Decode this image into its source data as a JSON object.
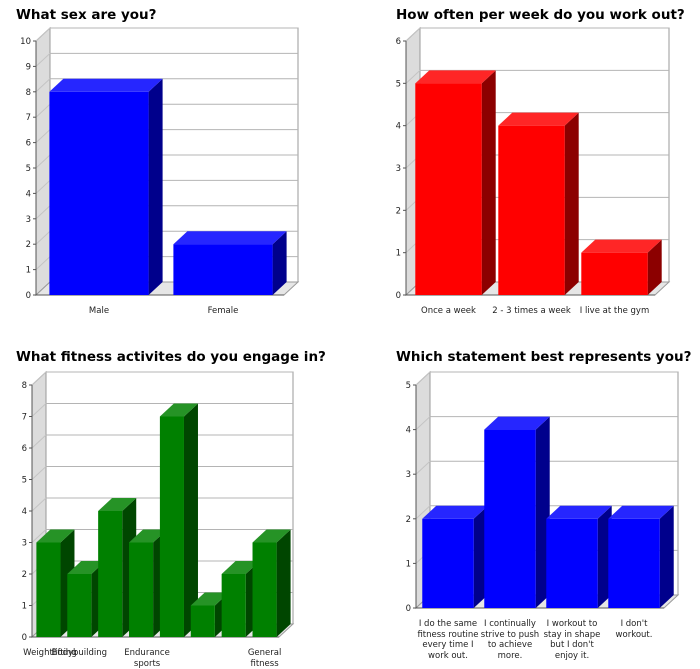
{
  "chart_data": [
    {
      "type": "bar",
      "title": "What sex are you?",
      "categories": [
        "Male",
        "Female"
      ],
      "values": [
        8,
        2
      ],
      "ylim": [
        0,
        10
      ],
      "yticks": [
        0,
        1,
        2,
        3,
        4,
        5,
        6,
        7,
        8,
        9,
        10
      ],
      "color": "#0000ff",
      "grid": true
    },
    {
      "type": "bar",
      "title": "How often per week do you work out?",
      "categories": [
        "Once a week",
        "2 - 3 times a week",
        "I live at the gym"
      ],
      "values": [
        5,
        4,
        1
      ],
      "ylim": [
        0,
        6
      ],
      "yticks": [
        0,
        1,
        2,
        3,
        4,
        5,
        6
      ],
      "color": "#ff0000",
      "grid": true
    },
    {
      "type": "bar",
      "title": "What fitness activites do you engage in?",
      "categories": [
        "Weightlifting",
        "Bodybuilding",
        "",
        "Endurance sports",
        "",
        "",
        "",
        "General fitness"
      ],
      "values": [
        3,
        2,
        4,
        3,
        7,
        1,
        2,
        3
      ],
      "ylim": [
        0,
        8
      ],
      "yticks": [
        0,
        1,
        2,
        3,
        4,
        5,
        6,
        7,
        8
      ],
      "color": "#008000",
      "grid": true
    },
    {
      "type": "bar",
      "title": "Which statement best represents you?",
      "categories": [
        "I do the same fitness routine every time I work out.",
        "I continually strive to push to achieve more.",
        "I workout to stay in shape but I don't enjoy it.",
        "I don't workout."
      ],
      "values": [
        2,
        4,
        2,
        2
      ],
      "ylim": [
        0,
        5
      ],
      "yticks": [
        0,
        1,
        2,
        3,
        4,
        5
      ],
      "color": "#0000ff",
      "grid": true
    }
  ]
}
